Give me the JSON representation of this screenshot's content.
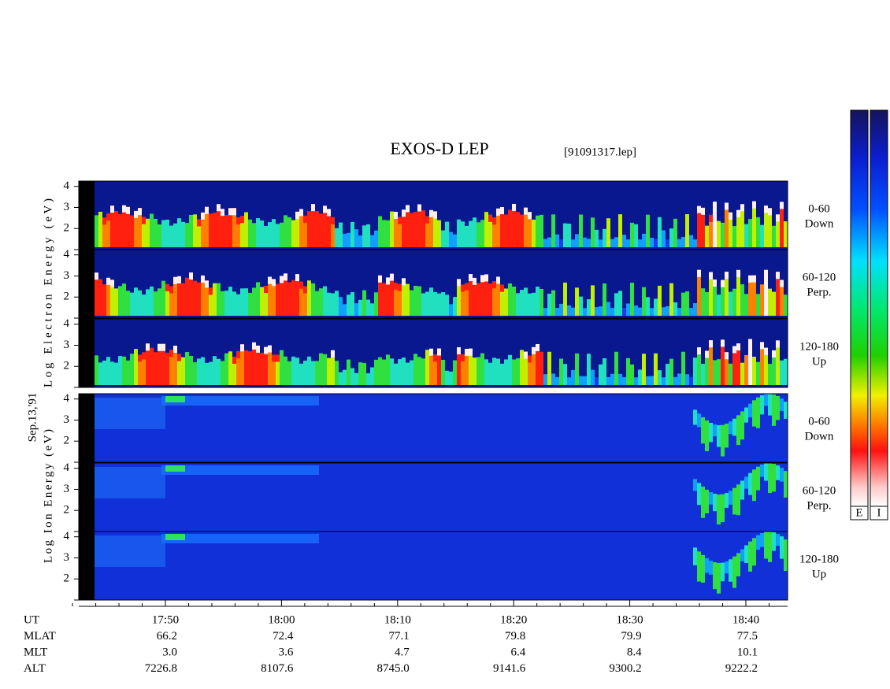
{
  "title": "EXOS-D LEP",
  "file": "[91091317.lep]",
  "date": "Sep.13,'91",
  "electron_label": "Log Electron Energy (eV)",
  "ion_label": "Log Ion Energy (eV)",
  "energy_axis": {
    "ylim": [
      1,
      4.25
    ],
    "yticks": [
      2,
      3,
      4
    ]
  },
  "electron_panels": [
    {
      "range": "0-60",
      "dir": "Down"
    },
    {
      "range": "60-120",
      "dir": "Perp."
    },
    {
      "range": "120-180",
      "dir": "Up"
    }
  ],
  "ion_panels": [
    {
      "range": "0-60",
      "dir": "Down"
    },
    {
      "range": "60-120",
      "dir": "Perp."
    },
    {
      "range": "120-180",
      "dir": "Up"
    }
  ],
  "time_table": [
    {
      "label": "UT",
      "values": [
        "17:50",
        "18:00",
        "18:10",
        "18:20",
        "18:30",
        "18:40"
      ]
    },
    {
      "label": "MLAT",
      "values": [
        "66.2",
        "72.4",
        "77.1",
        "79.8",
        "79.9",
        "77.5"
      ]
    },
    {
      "label": "MLT",
      "values": [
        "3.0",
        "3.6",
        "4.7",
        "6.4",
        "8.4",
        "10.1"
      ]
    },
    {
      "label": "ALT",
      "values": [
        "7226.8",
        "8107.6",
        "8745.0",
        "9141.6",
        "9300.2",
        "9222.2"
      ]
    }
  ],
  "colorbars": [
    "E",
    "I"
  ]
}
